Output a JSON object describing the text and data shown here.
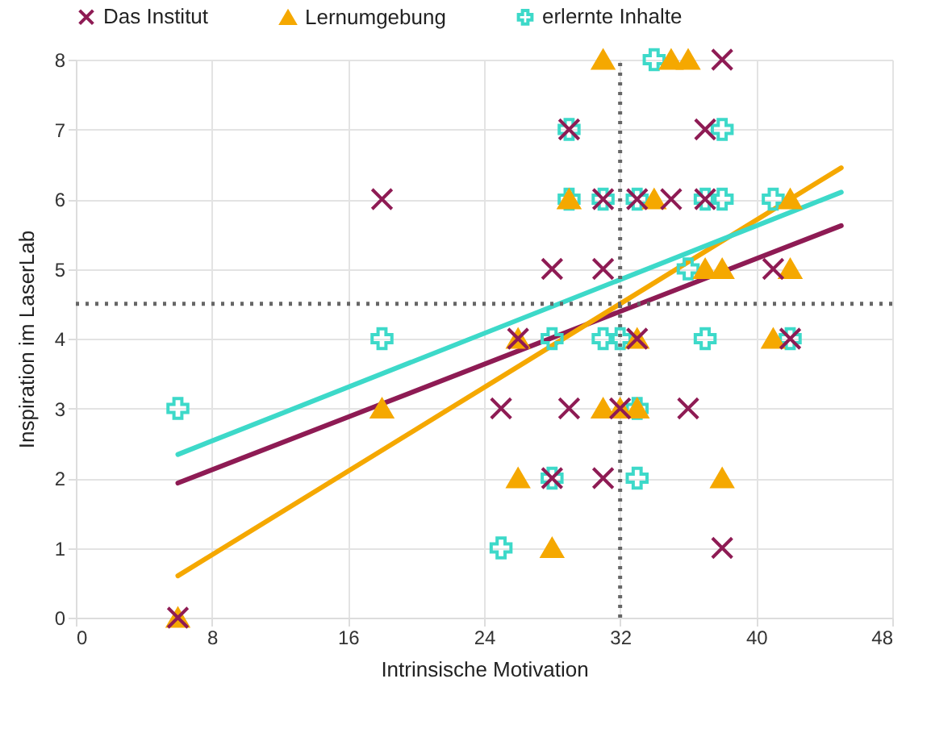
{
  "chart_data": {
    "type": "scatter",
    "xlabel": "Intrinsische Motivation",
    "ylabel": "Inspiration im LaserLab",
    "xlim": [
      0,
      48
    ],
    "xticks": [
      0,
      8,
      16,
      24,
      32,
      40,
      48
    ],
    "ylim": [
      0,
      8
    ],
    "yticks": [
      0,
      1,
      2,
      3,
      4,
      5,
      6,
      7,
      8
    ],
    "grid": true,
    "legend": "top",
    "ref_lines": [
      {
        "axis": "x",
        "value": 32,
        "color": "#666666",
        "line_style": "dotted"
      },
      {
        "axis": "y",
        "value": 4.5,
        "color": "#666666",
        "line_style": "dotted"
      }
    ],
    "series": [
      {
        "name": "Das Institut",
        "marker": "x",
        "color": "#8e1b54",
        "x": [
          6,
          18,
          25,
          26,
          28,
          28,
          29,
          29,
          31,
          31,
          31,
          32,
          33,
          33,
          35,
          36,
          37,
          37,
          38,
          38,
          41,
          42
        ],
        "values": [
          0,
          6,
          3,
          4,
          5,
          2,
          7,
          3,
          6,
          5,
          2,
          3,
          4,
          6,
          6,
          3,
          7,
          6,
          8,
          1,
          5,
          4
        ]
      },
      {
        "name": "Lernumgebung",
        "marker": "triangle",
        "color": "#f5a800",
        "x": [
          6,
          18,
          26,
          26,
          28,
          29,
          31,
          31,
          32,
          33,
          33,
          34,
          35,
          36,
          37,
          38,
          38,
          41,
          42,
          42
        ],
        "values": [
          0,
          3,
          4,
          2,
          1,
          6,
          8,
          3,
          3,
          3,
          4,
          6,
          8,
          8,
          5,
          5,
          2,
          4,
          6,
          5
        ]
      },
      {
        "name": "erlernte Inhalte",
        "marker": "cross",
        "color": "#3dd9c9",
        "x": [
          6,
          18,
          25,
          28,
          28,
          29,
          29,
          31,
          31,
          32,
          33,
          33,
          33,
          34,
          36,
          37,
          37,
          38,
          38,
          41,
          42
        ],
        "values": [
          3,
          4,
          1,
          4,
          2,
          7,
          6,
          6,
          4,
          4,
          6,
          3,
          2,
          8,
          5,
          6,
          4,
          6,
          7,
          6,
          4
        ]
      },
      {
        "type": "line",
        "color": "#8e1b54",
        "x": [
          6,
          45
        ],
        "values": [
          1.93,
          5.62
        ]
      },
      {
        "type": "line",
        "color": "#f5a800",
        "x": [
          6,
          45
        ],
        "values": [
          0.6,
          6.45
        ]
      },
      {
        "type": "line",
        "color": "#3dd9c9",
        "x": [
          6,
          45
        ],
        "values": [
          2.34,
          6.1
        ]
      }
    ]
  }
}
